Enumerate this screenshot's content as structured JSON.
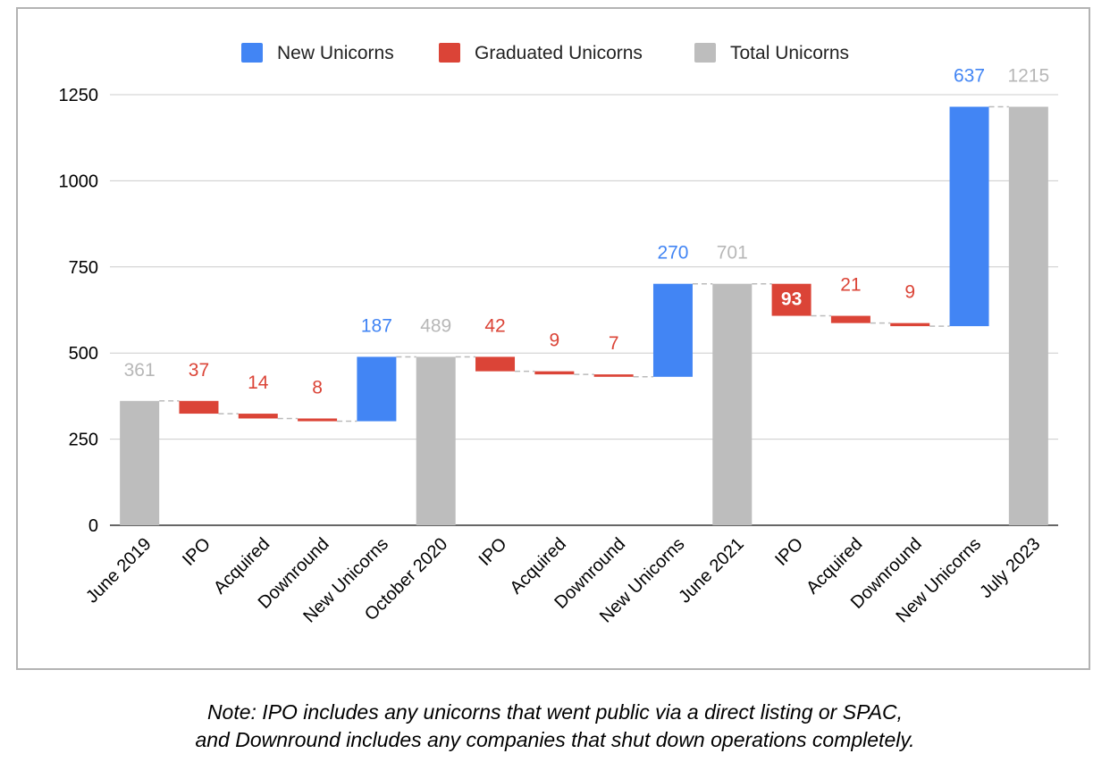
{
  "chart_data": {
    "type": "bar",
    "subtype": "waterfall",
    "legend": [
      {
        "name": "New Unicorns",
        "color": "#4285f4"
      },
      {
        "name": "Graduated Unicorns",
        "color": "#db4437"
      },
      {
        "name": "Total Unicorns",
        "color": "#bdbdbd"
      }
    ],
    "legend_position": "top",
    "ylim": [
      0,
      1300
    ],
    "yticks": [
      0,
      250,
      500,
      750,
      1000,
      1250
    ],
    "grid": true,
    "categories": [
      "June 2019",
      "IPO",
      "Acquired",
      "Downround",
      "New Unicorns",
      "October 2020",
      "IPO",
      "Acquired",
      "Downround",
      "New Unicorns",
      "June 2021",
      "IPO",
      "Acquired",
      "Downround",
      "New Unicorns",
      "July 2023"
    ],
    "bars": [
      {
        "kind": "total",
        "value": 361,
        "label": "361"
      },
      {
        "kind": "graduated",
        "value": 37,
        "label": "37"
      },
      {
        "kind": "graduated",
        "value": 14,
        "label": "14"
      },
      {
        "kind": "graduated",
        "value": 8,
        "label": "8"
      },
      {
        "kind": "new",
        "value": 187,
        "label": "187"
      },
      {
        "kind": "total",
        "value": 489,
        "label": "489"
      },
      {
        "kind": "graduated",
        "value": 42,
        "label": "42"
      },
      {
        "kind": "graduated",
        "value": 9,
        "label": "9"
      },
      {
        "kind": "graduated",
        "value": 7,
        "label": "7"
      },
      {
        "kind": "new",
        "value": 270,
        "label": "270"
      },
      {
        "kind": "total",
        "value": 701,
        "label": "701"
      },
      {
        "kind": "graduated",
        "value": 93,
        "label": "93",
        "label_inside": true
      },
      {
        "kind": "graduated",
        "value": 21,
        "label": "21"
      },
      {
        "kind": "graduated",
        "value": 9,
        "label": "9"
      },
      {
        "kind": "new",
        "value": 637,
        "label": "637"
      },
      {
        "kind": "total",
        "value": 1215,
        "label": "1215"
      }
    ],
    "colors": {
      "new": "#4285f4",
      "graduated": "#db4437",
      "total": "#bdbdbd",
      "total_label": "#b7b7b7"
    }
  },
  "note": {
    "line1": "Note: IPO includes any unicorns that went public via a direct listing or SPAC,",
    "line2": "and Downround includes any companies that shut down operations completely."
  }
}
